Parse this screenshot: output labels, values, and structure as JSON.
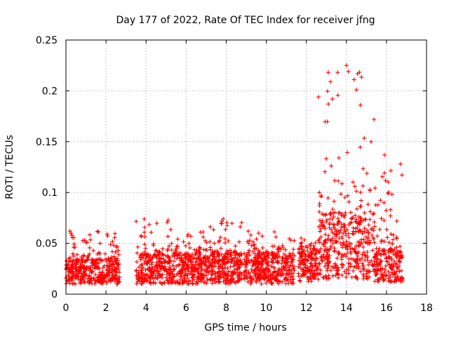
{
  "chart_data": {
    "type": "scatter",
    "title": "Day 177 of 2022, Rate Of TEC Index for receiver jfng",
    "xlabel": "GPS time / hours",
    "ylabel": "ROTI / TECUs",
    "xlim": [
      0,
      18
    ],
    "ylim": [
      0,
      0.25
    ],
    "xticks": [
      0,
      2,
      4,
      6,
      8,
      10,
      12,
      14,
      16,
      18
    ],
    "xtick_labels": [
      "0",
      "2",
      "4",
      "6",
      "8",
      "10",
      "12",
      "14",
      "16",
      "18"
    ],
    "yticks": [
      0,
      0.05,
      0.1,
      0.15,
      0.2,
      0.25
    ],
    "ytick_labels": [
      "0",
      "0.05",
      "0.1",
      "0.15",
      "0.2",
      "0.25"
    ],
    "grid": true,
    "marker": "+",
    "color": "#ff0000",
    "segments": [
      {
        "start": 0.0,
        "end": 2.7,
        "typical": [
          0.01,
          0.035
        ],
        "peak": 0.062
      },
      {
        "start": 3.5,
        "end": 8.8,
        "typical": [
          0.01,
          0.04
        ],
        "peak": 0.074
      },
      {
        "start": 8.9,
        "end": 11.4,
        "typical": [
          0.01,
          0.04
        ],
        "peak": 0.062
      },
      {
        "start": 11.6,
        "end": 12.6,
        "typical": [
          0.012,
          0.045
        ],
        "peak": 0.06
      },
      {
        "start": 12.6,
        "end": 15.4,
        "typical": [
          0.015,
          0.08
        ],
        "peak": 0.225
      },
      {
        "start": 15.4,
        "end": 16.8,
        "typical": [
          0.012,
          0.045
        ],
        "peak": 0.137
      }
    ],
    "highlights": [
      {
        "x": 0.2,
        "y": 0.062
      },
      {
        "x": 0.25,
        "y": 0.06
      },
      {
        "x": 1.7,
        "y": 0.05
      },
      {
        "x": 7.85,
        "y": 0.074
      },
      {
        "x": 9.1,
        "y": 0.062
      },
      {
        "x": 13.1,
        "y": 0.187
      },
      {
        "x": 13.3,
        "y": 0.192
      },
      {
        "x": 14.0,
        "y": 0.225
      },
      {
        "x": 14.1,
        "y": 0.219
      },
      {
        "x": 14.5,
        "y": 0.201
      },
      {
        "x": 14.7,
        "y": 0.186
      },
      {
        "x": 15.9,
        "y": 0.137
      },
      {
        "x": 16.2,
        "y": 0.077
      }
    ]
  }
}
